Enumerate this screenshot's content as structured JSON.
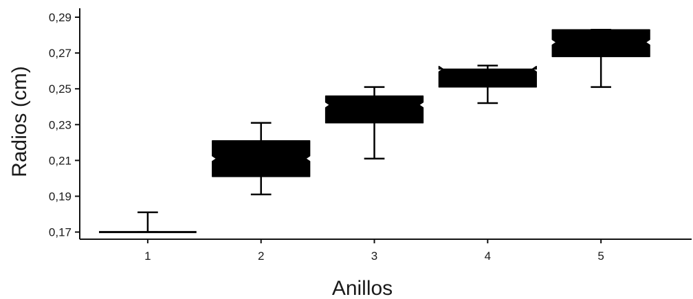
{
  "chart_data": {
    "type": "boxplot",
    "title": "",
    "xlabel": "Anillos",
    "ylabel": "Radios (cm)",
    "ylim": [
      0.166,
      0.295
    ],
    "y_ticks": [
      0.17,
      0.19,
      0.21,
      0.23,
      0.25,
      0.27,
      0.29
    ],
    "y_tick_labels": [
      "0,17",
      "0,19",
      "0,21",
      "0,23",
      "0,25",
      "0,27",
      "0,29"
    ],
    "categories": [
      "1",
      "2",
      "3",
      "4",
      "5"
    ],
    "boxes": [
      {
        "category": "1",
        "whisker_low": 0.17,
        "q1": 0.17,
        "median": 0.17,
        "q3": 0.17,
        "whisker_high": 0.181
      },
      {
        "category": "2",
        "whisker_low": 0.191,
        "q1": 0.201,
        "median": 0.211,
        "q3": 0.221,
        "whisker_high": 0.231
      },
      {
        "category": "3",
        "whisker_low": 0.211,
        "q1": 0.231,
        "median": 0.241,
        "q3": 0.246,
        "whisker_high": 0.251
      },
      {
        "category": "4",
        "whisker_low": 0.242,
        "q1": 0.251,
        "median": 0.261,
        "q3": 0.261,
        "whisker_high": 0.263
      },
      {
        "category": "5",
        "whisker_low": 0.251,
        "q1": 0.268,
        "median": 0.276,
        "q3": 0.283,
        "whisker_high": 0.283
      }
    ],
    "box_color": "#000000",
    "grid": false,
    "legend": "none"
  }
}
